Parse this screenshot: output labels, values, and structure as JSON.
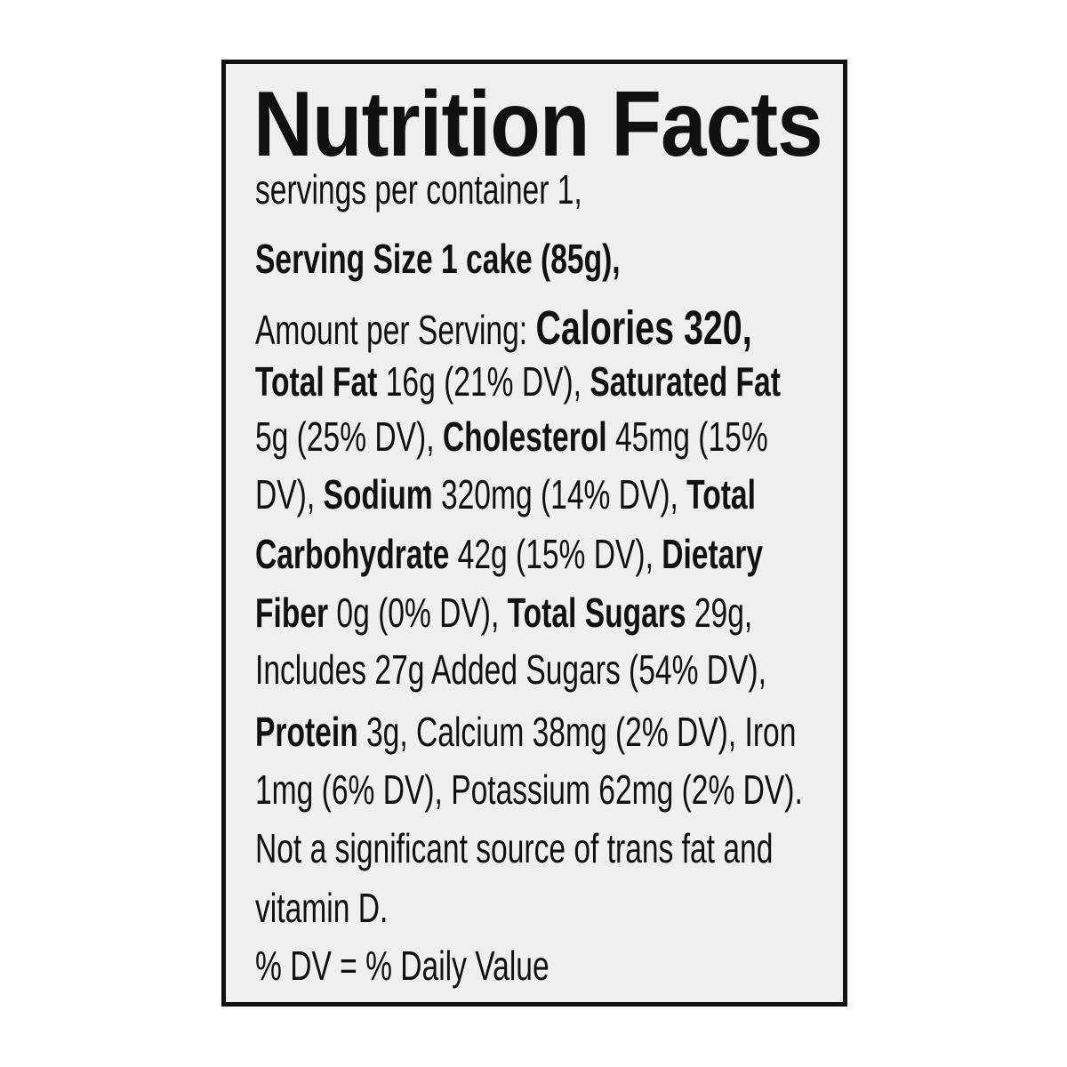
{
  "title": "Nutrition Facts",
  "lines": [
    [
      {
        "t": "servings per container 1,",
        "b": false
      }
    ],
    [
      {
        "t": "Serving Size 1 cake (85g),",
        "b": true
      }
    ],
    [
      {
        "t": "Amount per Serving: ",
        "b": false
      },
      {
        "t": "Calories 320,",
        "b": true,
        "cal": true
      }
    ],
    [
      {
        "t": "Total Fat",
        "b": true
      },
      {
        "t": " 16g (21% DV), ",
        "b": false
      },
      {
        "t": "Saturated Fat",
        "b": true
      }
    ],
    [
      {
        "t": "5g (25% DV), ",
        "b": false
      },
      {
        "t": "Cholesterol",
        "b": true
      },
      {
        "t": " 45mg (15%",
        "b": false
      }
    ],
    [
      {
        "t": "DV), ",
        "b": false
      },
      {
        "t": "Sodium",
        "b": true
      },
      {
        "t": " 320mg (14% DV), ",
        "b": false
      },
      {
        "t": "Total",
        "b": true
      }
    ],
    [
      {
        "t": "Carbohydrate",
        "b": true
      },
      {
        "t": " 42g (15% DV), ",
        "b": false
      },
      {
        "t": "Dietary",
        "b": true
      }
    ],
    [
      {
        "t": "Fiber",
        "b": true
      },
      {
        "t": " 0g (0% DV), ",
        "b": false
      },
      {
        "t": "Total Sugars",
        "b": true
      },
      {
        "t": " 29g,",
        "b": false
      }
    ],
    [
      {
        "t": "Includes 27g Added Sugars (54% DV),",
        "b": false
      }
    ],
    [
      {
        "t": "Protein",
        "b": true
      },
      {
        "t": " 3g, Calcium 38mg (2% DV), Iron",
        "b": false
      }
    ],
    [
      {
        "t": "1mg (6% DV), Potassium 62mg (2% DV).",
        "b": false
      }
    ],
    [
      {
        "t": "Not a significant source of trans fat and",
        "b": false
      }
    ],
    [
      {
        "t": "vitamin D.",
        "b": false
      }
    ],
    [
      {
        "t": "% DV = % Daily Value",
        "b": false
      }
    ]
  ]
}
